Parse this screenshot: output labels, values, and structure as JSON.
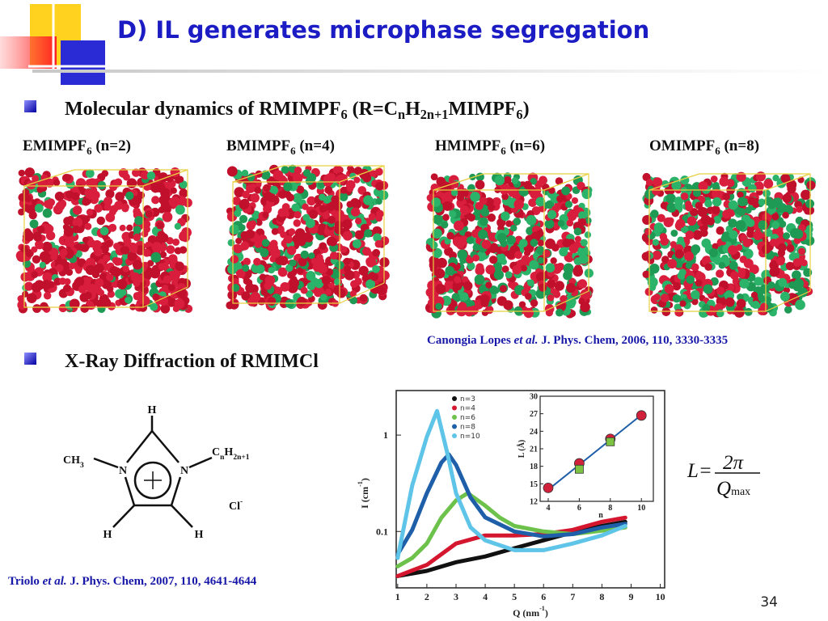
{
  "header": {
    "title": "D) IL generates microphase segregation"
  },
  "bullets": [
    {
      "runs": [
        {
          "text": "Molecular dynamics of RMIMPF"
        },
        {
          "sub": "6"
        },
        {
          "text": " (R=C"
        },
        {
          "sub": "n"
        },
        {
          "text": "H"
        },
        {
          "sub": "2n+1"
        },
        {
          "text": "MIMPF"
        },
        {
          "sub": "6"
        },
        {
          "text": ")"
        }
      ]
    },
    {
      "runs": [
        {
          "text": "X-Ray Diffraction of RMIMCl"
        }
      ]
    }
  ],
  "simulations": [
    {
      "runs": [
        {
          "text": "EMIMPF"
        },
        {
          "sub": "6"
        },
        {
          "text": " (n=2)"
        }
      ]
    },
    {
      "runs": [
        {
          "text": "BMIMPF"
        },
        {
          "sub": "6"
        },
        {
          "text": " (n=4)"
        }
      ]
    },
    {
      "runs": [
        {
          "text": "HMIMPF"
        },
        {
          "sub": "6"
        },
        {
          "text": " (n=6)"
        }
      ]
    },
    {
      "runs": [
        {
          "text": "OMIMPF"
        },
        {
          "sub": "6"
        },
        {
          "text": " (n=8)"
        }
      ]
    }
  ],
  "citations": [
    {
      "runs": [
        {
          "text": "Canongia Lopes "
        },
        {
          "italic": "et al."
        },
        {
          "text": " J. Phys. Chem, 2006, 110, 3330-3335"
        }
      ]
    },
    {
      "runs": [
        {
          "text": "Triolo "
        },
        {
          "italic": "et al."
        },
        {
          "text": " J. Phys. Chem, 2007, 110, 4641-4644"
        }
      ]
    }
  ],
  "molecule": {
    "top_h": "H",
    "left_n": "N",
    "right_n": "N",
    "bottom_left_h": "H",
    "bottom_right_h": "H",
    "methyl": [
      {
        "text": "CH"
      },
      {
        "sub": "3"
      }
    ],
    "chain": [
      {
        "text": "C"
      },
      {
        "sub": "n"
      },
      {
        "text": "H"
      },
      {
        "sub": "2n+1"
      }
    ],
    "anion": [
      {
        "text": "Cl"
      },
      {
        "sup": "-"
      }
    ]
  },
  "chart_data": [
    {
      "type": "line",
      "log_y": true,
      "xlabel": [
        {
          "text": "Q (nm"
        },
        {
          "sup": "-1"
        },
        {
          "text": ")"
        }
      ],
      "ylabel": [
        {
          "text": "I (cm"
        },
        {
          "sup": "-1"
        },
        {
          "text": ")"
        }
      ],
      "xlim": [
        0.95,
        10.15
      ],
      "ylim": [
        0.026,
        2.9
      ],
      "xticks": [
        1,
        2,
        3,
        4,
        5,
        6,
        7,
        8,
        9,
        10
      ],
      "yticks": [
        1,
        0.1
      ],
      "legend": "upper center",
      "series": [
        {
          "name": "n=3",
          "color": "#111111",
          "x": [
            1,
            2,
            3,
            4,
            5,
            6,
            7,
            8,
            8.8
          ],
          "values": [
            0.0345,
            0.039,
            0.048,
            0.055,
            0.067,
            0.081,
            0.098,
            0.114,
            0.126
          ]
        },
        {
          "name": "n=4",
          "color": "#d4172f",
          "x": [
            1,
            2,
            3,
            4,
            5,
            6,
            7,
            8,
            8.8
          ],
          "values": [
            0.0345,
            0.045,
            0.075,
            0.091,
            0.091,
            0.094,
            0.104,
            0.126,
            0.139
          ]
        },
        {
          "name": "n=6",
          "color": "#6cc24a",
          "x": [
            1,
            1.5,
            2,
            2.5,
            3,
            3.4,
            4,
            4.5,
            5,
            6,
            7,
            8,
            8.8
          ],
          "values": [
            0.0435,
            0.053,
            0.075,
            0.139,
            0.21,
            0.25,
            0.185,
            0.139,
            0.114,
            0.1,
            0.094,
            0.102,
            0.11
          ]
        },
        {
          "name": "n=8",
          "color": "#1f5ea8",
          "x": [
            1,
            1.5,
            2,
            2.5,
            2.75,
            3,
            3.5,
            4,
            5,
            6,
            7,
            8,
            8.8
          ],
          "values": [
            0.058,
            0.104,
            0.25,
            0.52,
            0.63,
            0.49,
            0.225,
            0.14,
            0.1,
            0.089,
            0.094,
            0.11,
            0.12
          ]
        },
        {
          "name": "n=10",
          "color": "#5ec4e8",
          "x": [
            1,
            1.5,
            2,
            2.35,
            2.7,
            3,
            3.5,
            4,
            5,
            6,
            7,
            8,
            8.8
          ],
          "values": [
            0.053,
            0.3,
            0.96,
            1.78,
            0.65,
            0.25,
            0.11,
            0.081,
            0.064,
            0.064,
            0.075,
            0.091,
            0.114
          ]
        }
      ]
    },
    {
      "type": "scatter",
      "xlabel": "n",
      "ylabel": "L (Å)",
      "xlim": [
        3.48,
        10.77
      ],
      "ylim": [
        12,
        30
      ],
      "xticks": [
        4,
        6,
        8,
        10
      ],
      "yticks": [
        12,
        15,
        18,
        21,
        24,
        27,
        30
      ],
      "series": [
        {
          "color": "#d0203a",
          "marker": "circle",
          "x": [
            4,
            6,
            8,
            10
          ],
          "values": [
            14.3,
            18.5,
            22.7,
            26.7
          ]
        },
        {
          "color": "#7dc242",
          "marker": "square",
          "x": [
            6,
            8
          ],
          "values": [
            17.5,
            22.2
          ]
        }
      ],
      "fit": {
        "color": "#1f5fa8",
        "x": [
          4,
          10
        ],
        "values": [
          14,
          26.8
        ]
      }
    }
  ],
  "formula": {
    "lhs": "L=",
    "numerator": "2π",
    "denominator": "Q",
    "subscript": "max"
  },
  "page_number": 34
}
